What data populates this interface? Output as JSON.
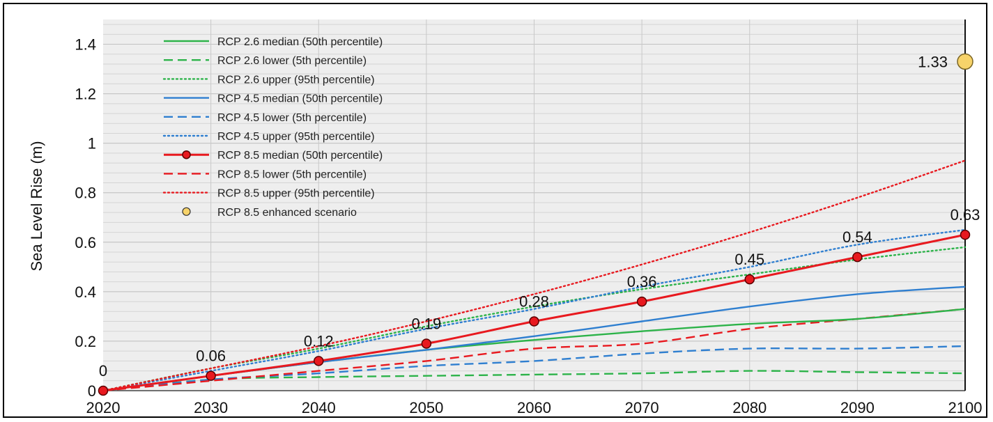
{
  "chart_data": {
    "type": "line",
    "ylabel": "Sea Level Rise (m)",
    "xlabel": "",
    "xlim": [
      2020,
      2100
    ],
    "ylim": [
      0,
      1.5
    ],
    "x_ticks": [
      "2020",
      "2030",
      "2040",
      "2050",
      "2060",
      "2070",
      "2080",
      "2090",
      "2100"
    ],
    "y_ticks": [
      "0",
      "0.2",
      "0.4",
      "0.6",
      "0.8",
      "1",
      "1.2",
      "1.4"
    ],
    "grid": true,
    "legend_position": "top-left",
    "colors": {
      "rcp26": "#2db34a",
      "rcp45": "#2f7fd0",
      "rcp85": "#e8191f",
      "enhanced": "#f7d36a"
    },
    "series": [
      {
        "name": "RCP 2.6 median (50th percentile)",
        "color": "#2db34a",
        "style": "solid",
        "x": [
          2020,
          2030,
          2040,
          2050,
          2060,
          2070,
          2080,
          2090,
          2100
        ],
        "y": [
          0,
          0.06,
          0.115,
          0.165,
          0.205,
          0.24,
          0.27,
          0.29,
          0.33
        ]
      },
      {
        "name": "RCP 2.6 lower (5th percentile)",
        "color": "#2db34a",
        "style": "dashed",
        "x": [
          2020,
          2030,
          2040,
          2050,
          2060,
          2070,
          2080,
          2090,
          2100
        ],
        "y": [
          0,
          0.045,
          0.055,
          0.06,
          0.065,
          0.07,
          0.08,
          0.075,
          0.07
        ]
      },
      {
        "name": "RCP 2.6 upper (95th percentile)",
        "color": "#2db34a",
        "style": "dotted",
        "x": [
          2020,
          2030,
          2040,
          2050,
          2060,
          2070,
          2080,
          2090,
          2100
        ],
        "y": [
          0,
          0.09,
          0.17,
          0.26,
          0.34,
          0.41,
          0.47,
          0.53,
          0.58
        ]
      },
      {
        "name": "RCP 4.5 median (50th percentile)",
        "color": "#2f7fd0",
        "style": "solid",
        "x": [
          2020,
          2030,
          2040,
          2050,
          2060,
          2070,
          2080,
          2090,
          2100
        ],
        "y": [
          0,
          0.06,
          0.115,
          0.165,
          0.22,
          0.28,
          0.34,
          0.39,
          0.42
        ]
      },
      {
        "name": "RCP 4.5 lower (5th percentile)",
        "color": "#2f7fd0",
        "style": "dashed",
        "x": [
          2020,
          2030,
          2040,
          2050,
          2060,
          2070,
          2080,
          2090,
          2100
        ],
        "y": [
          0,
          0.045,
          0.07,
          0.1,
          0.12,
          0.15,
          0.17,
          0.17,
          0.18
        ]
      },
      {
        "name": "RCP 4.5 upper (95th percentile)",
        "color": "#2f7fd0",
        "style": "dotted",
        "x": [
          2020,
          2030,
          2040,
          2050,
          2060,
          2070,
          2080,
          2090,
          2100
        ],
        "y": [
          0,
          0.08,
          0.16,
          0.25,
          0.33,
          0.42,
          0.5,
          0.59,
          0.65
        ]
      },
      {
        "name": "RCP 8.5 median (50th percentile)",
        "color": "#e8191f",
        "style": "solid-markers",
        "x": [
          2020,
          2030,
          2040,
          2050,
          2060,
          2070,
          2080,
          2090,
          2100
        ],
        "y": [
          0,
          0.06,
          0.12,
          0.19,
          0.28,
          0.36,
          0.45,
          0.54,
          0.63
        ],
        "labels": [
          "0",
          "0.06",
          "0.12",
          "0.19",
          "0.28",
          "0.36",
          "0.45",
          "0.54",
          "0.63"
        ]
      },
      {
        "name": "RCP 8.5 lower (5th percentile)",
        "color": "#e8191f",
        "style": "dashed",
        "x": [
          2020,
          2030,
          2040,
          2050,
          2060,
          2070,
          2080,
          2090,
          2100
        ],
        "y": [
          0,
          0.04,
          0.08,
          0.12,
          0.17,
          0.19,
          0.25,
          0.29,
          0.33
        ]
      },
      {
        "name": "RCP 8.5 upper (95th percentile)",
        "color": "#e8191f",
        "style": "dotted",
        "x": [
          2020,
          2030,
          2040,
          2050,
          2060,
          2070,
          2080,
          2090,
          2100
        ],
        "y": [
          0,
          0.09,
          0.18,
          0.28,
          0.39,
          0.51,
          0.64,
          0.78,
          0.93
        ]
      },
      {
        "name": "RCP 8.5 enhanced scenario",
        "color": "#f7d36a",
        "style": "point",
        "x": [
          2100
        ],
        "y": [
          1.33
        ],
        "labels": [
          "1.33"
        ]
      }
    ]
  }
}
